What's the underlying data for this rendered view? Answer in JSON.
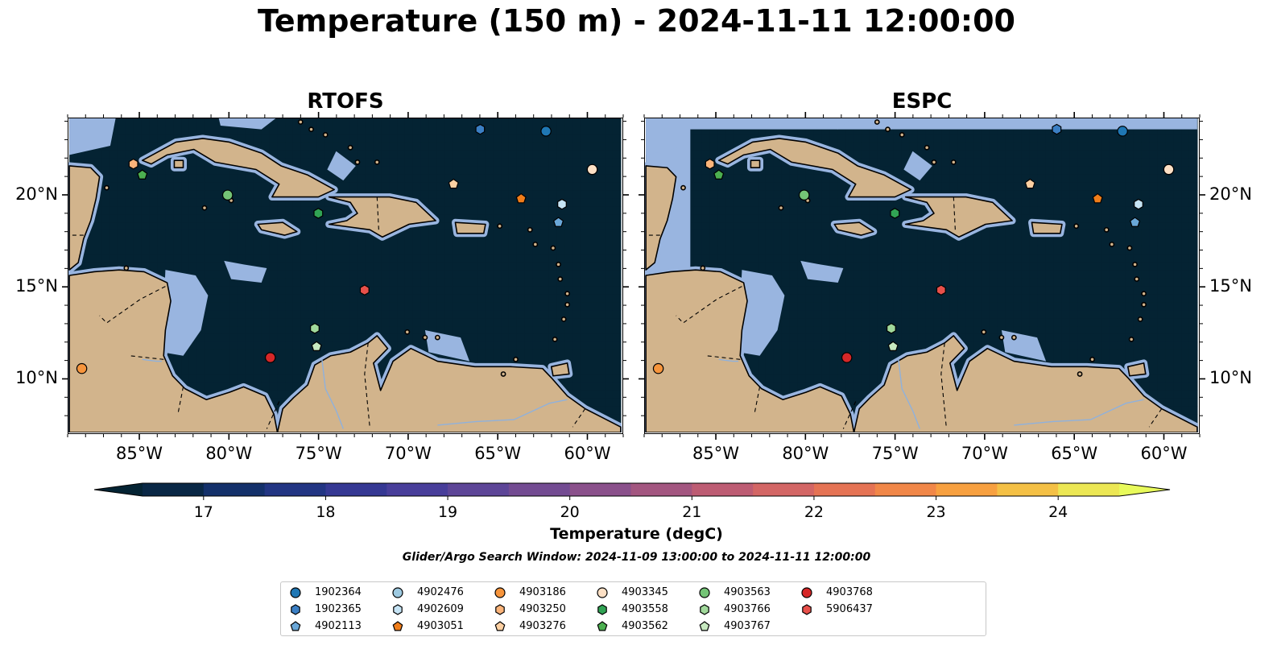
{
  "title": "Temperature (150 m) - 2024-11-11 12:00:00",
  "panels": [
    {
      "title": "RTOFS"
    },
    {
      "title": "ESPC"
    }
  ],
  "map": {
    "lon_range": [
      -89,
      -58
    ],
    "lat_range": [
      7,
      24.2
    ],
    "lon_ticks": [
      "85°W",
      "80°W",
      "75°W",
      "70°W",
      "65°W",
      "60°W"
    ],
    "lat_ticks": [
      "20°N",
      "15°N",
      "10°N"
    ],
    "colors": {
      "ocean_shelf": "#99b5e0",
      "land": "#d2b48c",
      "coast": "#000000"
    }
  },
  "colorbar": {
    "ticks": [
      "17",
      "18",
      "19",
      "20",
      "21",
      "22",
      "23",
      "24"
    ],
    "range": [
      16.5,
      24.5
    ],
    "step": 0.5,
    "extend": "both",
    "colormap": "thermal",
    "label": "Temperature (degC)"
  },
  "search_window": "Glider/Argo Search Window: 2024-11-09 13:00:00 to 2024-11-11 12:00:00",
  "floats": [
    {
      "id": "1902364",
      "marker": "circle",
      "color": "#1f77b4",
      "lon": -62.2,
      "lat": 23.5
    },
    {
      "id": "1902365",
      "marker": "hexagon",
      "color": "#3b7fc4",
      "lon": -65.9,
      "lat": 23.6
    },
    {
      "id": "4902113",
      "marker": "pentagon",
      "color": "#6aa7d8",
      "lon": -61.5,
      "lat": 18.5
    },
    {
      "id": "4902476",
      "marker": "circle",
      "color": "#9ecae1",
      "lon": -59.6,
      "lat": 21.4
    },
    {
      "id": "4902609",
      "marker": "hexagon",
      "color": "#c6e4f5",
      "lon": -61.3,
      "lat": 19.5
    },
    {
      "id": "4903051",
      "marker": "pentagon",
      "color": "#f07d1a",
      "lon": -63.6,
      "lat": 19.8
    },
    {
      "id": "4903186",
      "marker": "circle",
      "color": "#f7953c",
      "lon": -88.3,
      "lat": 10.5
    },
    {
      "id": "4903250",
      "marker": "hexagon",
      "color": "#fbb47a",
      "lon": -85.4,
      "lat": 21.7
    },
    {
      "id": "4903276",
      "marker": "pentagon",
      "color": "#fdd0a2",
      "lon": -67.4,
      "lat": 20.6
    },
    {
      "id": "4903345",
      "marker": "circle",
      "color": "#fde0c5",
      "lon": -59.6,
      "lat": 21.4
    },
    {
      "id": "4903558",
      "marker": "hexagon",
      "color": "#31a354",
      "lon": -75.0,
      "lat": 19.0
    },
    {
      "id": "4903562",
      "marker": "pentagon",
      "color": "#4caf50",
      "lon": -84.9,
      "lat": 21.1
    },
    {
      "id": "4903563",
      "marker": "circle",
      "color": "#74c476",
      "lon": -80.1,
      "lat": 20.0
    },
    {
      "id": "4903766",
      "marker": "hexagon",
      "color": "#a1d99b",
      "lon": -75.2,
      "lat": 12.7
    },
    {
      "id": "4903767",
      "marker": "pentagon",
      "color": "#c7e9c0",
      "lon": -75.1,
      "lat": 11.7
    },
    {
      "id": "4903768",
      "marker": "circle",
      "color": "#d62728",
      "lon": -77.7,
      "lat": 11.1
    },
    {
      "id": "5906437",
      "marker": "hexagon",
      "color": "#e8504a",
      "lon": -72.4,
      "lat": 14.8
    }
  ]
}
